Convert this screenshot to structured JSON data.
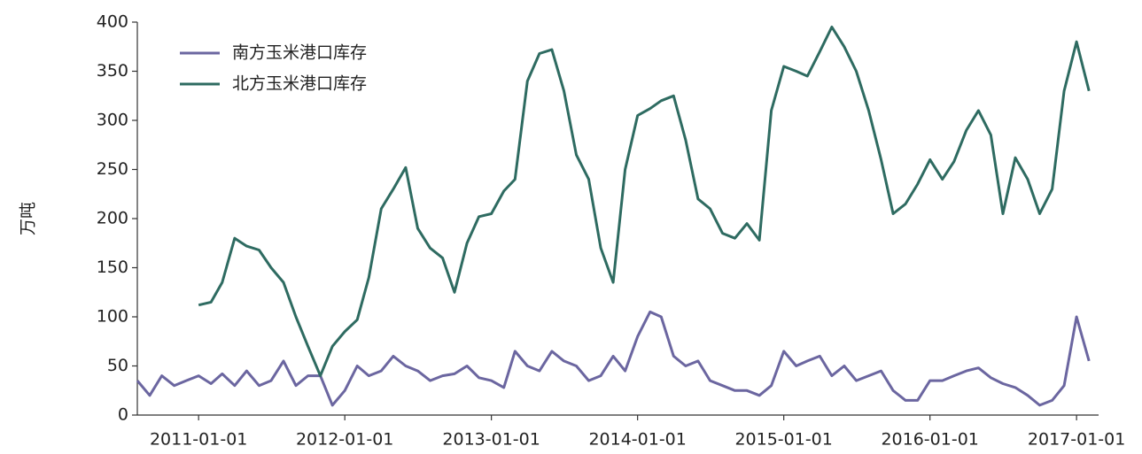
{
  "chart_data": {
    "type": "line",
    "y_label": "万吨",
    "x": [
      "2010-08-01",
      "2010-09-01",
      "2010-10-01",
      "2010-11-01",
      "2010-12-01",
      "2011-01-01",
      "2011-02-01",
      "2011-03-01",
      "2011-04-01",
      "2011-05-01",
      "2011-06-01",
      "2011-07-01",
      "2011-08-01",
      "2011-09-01",
      "2011-10-01",
      "2011-11-01",
      "2011-12-01",
      "2012-01-01",
      "2012-02-01",
      "2012-03-01",
      "2012-04-01",
      "2012-05-01",
      "2012-06-01",
      "2012-07-01",
      "2012-08-01",
      "2012-09-01",
      "2012-10-01",
      "2012-11-01",
      "2012-12-01",
      "2013-01-01",
      "2013-02-01",
      "2013-03-01",
      "2013-04-01",
      "2013-05-01",
      "2013-06-01",
      "2013-07-01",
      "2013-08-01",
      "2013-09-01",
      "2013-10-01",
      "2013-11-01",
      "2013-12-01",
      "2014-01-01",
      "2014-02-01",
      "2014-03-01",
      "2014-04-01",
      "2014-05-01",
      "2014-06-01",
      "2014-07-01",
      "2014-08-01",
      "2014-09-01",
      "2014-10-01",
      "2014-11-01",
      "2014-12-01",
      "2015-01-01",
      "2015-02-01",
      "2015-03-01",
      "2015-04-01",
      "2015-05-01",
      "2015-06-01",
      "2015-07-01",
      "2015-08-01",
      "2015-09-01",
      "2015-10-01",
      "2015-11-01",
      "2015-12-01",
      "2016-01-01",
      "2016-02-01",
      "2016-03-01",
      "2016-04-01",
      "2016-05-01",
      "2016-06-01",
      "2016-07-01",
      "2016-08-01",
      "2016-09-01",
      "2016-10-01",
      "2016-11-01",
      "2016-12-01",
      "2017-01-01",
      "2017-02-01"
    ],
    "series": [
      {
        "name": "南方玉米港口库存",
        "color": "#6b66a0",
        "values": [
          35,
          20,
          40,
          30,
          35,
          40,
          32,
          42,
          30,
          45,
          30,
          35,
          55,
          30,
          40,
          40,
          10,
          25,
          50,
          40,
          45,
          60,
          50,
          45,
          35,
          40,
          42,
          50,
          38,
          35,
          28,
          65,
          50,
          45,
          65,
          55,
          50,
          35,
          40,
          60,
          45,
          80,
          105,
          100,
          60,
          50,
          55,
          35,
          30,
          25,
          25,
          20,
          30,
          65,
          50,
          55,
          60,
          40,
          50,
          35,
          40,
          45,
          25,
          15,
          15,
          35,
          35,
          40,
          45,
          48,
          38,
          32,
          28,
          20,
          10,
          15,
          30,
          100,
          55
        ]
      },
      {
        "name": "北方玉米港口库存",
        "color": "#2e6b61",
        "values": [
          null,
          null,
          null,
          null,
          null,
          112,
          115,
          135,
          180,
          172,
          168,
          150,
          135,
          100,
          70,
          40,
          70,
          85,
          97,
          140,
          210,
          230,
          252,
          190,
          170,
          160,
          125,
          175,
          202,
          205,
          228,
          240,
          340,
          368,
          372,
          330,
          265,
          240,
          170,
          135,
          250,
          305,
          312,
          320,
          325,
          280,
          220,
          210,
          185,
          180,
          195,
          178,
          310,
          355,
          350,
          345,
          370,
          395,
          375,
          350,
          310,
          260,
          205,
          215,
          235,
          260,
          240,
          258,
          290,
          310,
          285,
          205,
          262,
          240,
          205,
          230,
          330,
          380,
          330
        ]
      }
    ],
    "xlim": [
      "2010-08-01",
      "2017-02-25"
    ],
    "xticks": [
      "2011-01-01",
      "2012-01-01",
      "2013-01-01",
      "2014-01-01",
      "2015-01-01",
      "2016-01-01",
      "2017-01-01"
    ],
    "ylim": [
      0,
      400
    ],
    "yticks": [
      0,
      50,
      100,
      150,
      200,
      250,
      300,
      350,
      400
    ],
    "legend": "upper-left",
    "grid": false
  }
}
